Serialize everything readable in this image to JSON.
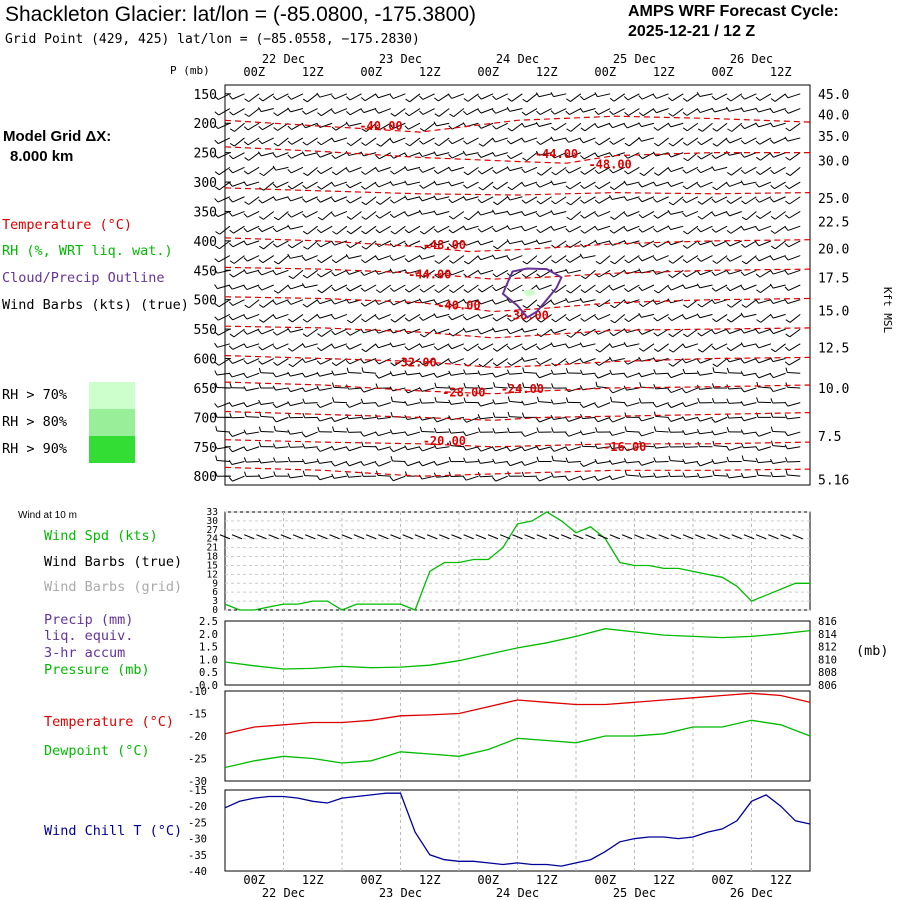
{
  "header": {
    "title": "Shackleton Glacier:  lat/lon = (-85.0800, -175.3800)",
    "grid_point": "Grid Point (429, 425) lat/lon = (−85.0558, −175.2830)",
    "amps_title": "AMPS WRF Forecast Cycle:",
    "cycle": "2025-12-21 / 12  Z"
  },
  "side": {
    "model_grid": "Model Grid ΔX:",
    "model_grid_value": "8.000 km",
    "legend_temperature": "Temperature (°C)",
    "legend_rh": "RH (%, WRT liq. wat.)",
    "legend_cloud": "Cloud/Precip Outline",
    "legend_wind": "Wind Barbs (kts) (true)",
    "rh_levels": [
      "RH > 70%",
      "RH > 80%",
      "RH > 90%"
    ],
    "wind_10m": "Wind at 10 m",
    "wind_spd": "Wind Spd (kts)",
    "wind_barbs_true": "Wind Barbs (true)",
    "wind_barbs_grid": "Wind Barbs (grid)",
    "precip": "Precip (mm)",
    "precip2": "liq. equiv.",
    "precip3": "3-hr accum",
    "pressure": "Pressure (mb)",
    "pressure_unit": "(mb)",
    "temperature": "Temperature (°C)",
    "dewpoint": "Dewpoint (°C)",
    "wind_chill": "Wind Chill T (°C)"
  },
  "colors": {
    "temperature": "#dd0000",
    "rh_green": "#00bb00",
    "cloud": "#663399",
    "wind_chill": "#000099",
    "grid_wind": "#aaaaaa",
    "rh70": "#ccffcc",
    "rh80": "#99ee99",
    "rh90": "#33dd33"
  },
  "chart_data": [
    {
      "type": "line",
      "panel": "cross-section",
      "x_hours": [
        0,
        120
      ],
      "time_ticks": [
        "00Z",
        "12Z",
        "00Z",
        "12Z",
        "00Z",
        "12Z",
        "00Z",
        "12Z",
        "00Z",
        "12Z"
      ],
      "date_ticks": [
        "22 Dec",
        "23 Dec",
        "24 Dec",
        "25 Dec",
        "26 Dec"
      ],
      "ylabel": "P (mb)",
      "y_ticks": [
        150,
        200,
        250,
        300,
        350,
        400,
        450,
        500,
        550,
        600,
        650,
        700,
        750,
        800
      ],
      "right_ylabel": "Kft MSL",
      "right_ticks": [
        "45.0",
        "40.0",
        "35.0",
        "30.0",
        "25.0",
        "22.5",
        "20.0",
        "17.5",
        "15.0",
        "12.5",
        "10.0",
        "7.5",
        "5.16"
      ],
      "right_tick_pressures": [
        150,
        185,
        222,
        263,
        327,
        367,
        413,
        462,
        518,
        581,
        650,
        732,
        806
      ],
      "isotherm_labels": [
        {
          "text": "-40.00",
          "t": 32,
          "p": 205
        },
        {
          "text": "-44.00",
          "t": 68,
          "p": 252
        },
        {
          "text": "-48.00",
          "t": 79,
          "p": 270
        },
        {
          "text": "-48.00",
          "t": 45,
          "p": 407
        },
        {
          "text": "-44.00",
          "t": 42,
          "p": 457
        },
        {
          "text": "-40.00",
          "t": 48,
          "p": 510
        },
        {
          "text": "-36.00",
          "t": 62,
          "p": 527
        },
        {
          "text": "-32.00",
          "t": 39,
          "p": 607
        },
        {
          "text": "-28.00",
          "t": 49,
          "p": 658
        },
        {
          "text": "-24.00",
          "t": 61,
          "p": 652
        },
        {
          "text": "-20.00",
          "t": 45,
          "p": 740
        },
        {
          "text": "-16.00",
          "t": 82,
          "p": 750
        }
      ],
      "isotherms": [
        [
          [
            0,
            195
          ],
          [
            20,
            205
          ],
          [
            40,
            215
          ],
          [
            60,
            195
          ],
          [
            80,
            188
          ],
          [
            100,
            192
          ],
          [
            120,
            198
          ]
        ],
        [
          [
            0,
            240
          ],
          [
            20,
            248
          ],
          [
            40,
            258
          ],
          [
            60,
            265
          ],
          [
            70,
            268
          ],
          [
            80,
            255
          ],
          [
            100,
            250
          ],
          [
            120,
            250
          ]
        ],
        [
          [
            0,
            310
          ],
          [
            20,
            315
          ],
          [
            40,
            320
          ],
          [
            60,
            322
          ],
          [
            80,
            318
          ],
          [
            100,
            320
          ],
          [
            120,
            318
          ]
        ],
        [
          [
            0,
            395
          ],
          [
            20,
            400
          ],
          [
            40,
            410
          ],
          [
            50,
            418
          ],
          [
            60,
            415
          ],
          [
            80,
            405
          ],
          [
            100,
            400
          ],
          [
            120,
            398
          ]
        ],
        [
          [
            0,
            445
          ],
          [
            20,
            448
          ],
          [
            40,
            455
          ],
          [
            55,
            465
          ],
          [
            65,
            462
          ],
          [
            80,
            455
          ],
          [
            100,
            450
          ],
          [
            120,
            448
          ]
        ],
        [
          [
            0,
            495
          ],
          [
            20,
            498
          ],
          [
            40,
            505
          ],
          [
            55,
            520
          ],
          [
            65,
            515
          ],
          [
            80,
            505
          ],
          [
            100,
            500
          ],
          [
            120,
            498
          ]
        ],
        [
          [
            0,
            545
          ],
          [
            20,
            548
          ],
          [
            40,
            555
          ],
          [
            55,
            565
          ],
          [
            65,
            560
          ],
          [
            80,
            552
          ],
          [
            100,
            550
          ],
          [
            120,
            548
          ]
        ],
        [
          [
            0,
            595
          ],
          [
            20,
            600
          ],
          [
            40,
            605
          ],
          [
            55,
            615
          ],
          [
            65,
            612
          ],
          [
            80,
            605
          ],
          [
            100,
            600
          ],
          [
            120,
            598
          ]
        ],
        [
          [
            0,
            640
          ],
          [
            20,
            645
          ],
          [
            40,
            655
          ],
          [
            55,
            660
          ],
          [
            65,
            655
          ],
          [
            80,
            650
          ],
          [
            100,
            648
          ],
          [
            120,
            645
          ]
        ],
        [
          [
            0,
            690
          ],
          [
            20,
            695
          ],
          [
            40,
            700
          ],
          [
            55,
            705
          ],
          [
            65,
            700
          ],
          [
            80,
            698
          ],
          [
            100,
            695
          ],
          [
            120,
            692
          ]
        ],
        [
          [
            0,
            738
          ],
          [
            20,
            742
          ],
          [
            40,
            745
          ],
          [
            55,
            750
          ],
          [
            65,
            748
          ],
          [
            80,
            745
          ],
          [
            100,
            745
          ],
          [
            120,
            742
          ]
        ],
        [
          [
            0,
            785
          ],
          [
            20,
            790
          ],
          [
            40,
            800
          ],
          [
            60,
            795
          ],
          [
            80,
            790
          ],
          [
            100,
            790
          ],
          [
            120,
            788
          ]
        ]
      ],
      "cloud_outline": [
        [
          59,
          452
        ],
        [
          58,
          470
        ],
        [
          57,
          490
        ],
        [
          60,
          510
        ],
        [
          62,
          530
        ],
        [
          64,
          520
        ],
        [
          66,
          500
        ],
        [
          68,
          480
        ],
        [
          69,
          462
        ],
        [
          66,
          448
        ],
        [
          62,
          447
        ]
      ],
      "rh_patch": [
        [
          61,
          485
        ],
        [
          63,
          482
        ],
        [
          64,
          490
        ],
        [
          62,
          495
        ]
      ]
    },
    {
      "type": "line",
      "panel": "wind-10m",
      "y_ticks": [
        0,
        3,
        6,
        9,
        12,
        15,
        18,
        21,
        24,
        27,
        30,
        33
      ],
      "series": [
        {
          "name": "Wind Spd (kts)",
          "color": "#00bb00",
          "t": [
            0,
            3,
            6,
            9,
            12,
            15,
            18,
            21,
            24,
            27,
            30,
            33,
            36,
            39,
            42,
            45,
            48,
            51,
            54,
            57,
            60,
            63,
            66,
            69,
            72,
            75,
            78,
            81,
            84,
            87,
            90,
            93,
            96,
            99,
            102,
            105,
            108,
            111,
            114,
            117,
            120
          ],
          "values": [
            2,
            0,
            0,
            1,
            2,
            2,
            3,
            3,
            0,
            2,
            2,
            2,
            2,
            0,
            13,
            16,
            16,
            17,
            17,
            21,
            29,
            30,
            33,
            30,
            26,
            28,
            24,
            16,
            15,
            15,
            14,
            14,
            13,
            12,
            11,
            8,
            3,
            5,
            7,
            9,
            9
          ]
        }
      ]
    },
    {
      "type": "line",
      "panel": "precip-pressure",
      "left_ticks": [
        0,
        0.5,
        1.0,
        1.5,
        2.0,
        2.5
      ],
      "right_ticks": [
        806,
        808,
        810,
        812,
        814,
        816
      ],
      "series": [
        {
          "name": "Pressure (mb)",
          "color": "#00bb00",
          "t": [
            0,
            6,
            12,
            18,
            24,
            30,
            36,
            42,
            48,
            54,
            60,
            66,
            72,
            78,
            84,
            90,
            96,
            102,
            108,
            114,
            120
          ],
          "values": [
            809.6,
            809.0,
            808.5,
            808.6,
            808.9,
            808.7,
            808.8,
            809.1,
            809.8,
            810.8,
            811.8,
            812.6,
            813.6,
            814.8,
            814.3,
            813.8,
            813.6,
            813.4,
            813.6,
            814.0,
            814.5
          ]
        }
      ]
    },
    {
      "type": "line",
      "panel": "temperature",
      "y_ticks": [
        -10,
        -15,
        -20,
        -25,
        -30
      ],
      "series": [
        {
          "name": "Temperature (°C)",
          "color": "#dd0000",
          "t": [
            0,
            6,
            12,
            18,
            24,
            30,
            36,
            42,
            48,
            54,
            60,
            66,
            72,
            78,
            84,
            90,
            96,
            102,
            108,
            114,
            120
          ],
          "values": [
            -19.5,
            -18.0,
            -17.5,
            -17.0,
            -17.0,
            -16.5,
            -15.5,
            -15.3,
            -15.0,
            -13.5,
            -12.0,
            -12.5,
            -13.0,
            -13.0,
            -12.5,
            -12.0,
            -11.5,
            -11.0,
            -10.5,
            -11.0,
            -12.5
          ]
        },
        {
          "name": "Dewpoint (°C)",
          "color": "#00bb00",
          "t": [
            0,
            6,
            12,
            18,
            24,
            30,
            36,
            42,
            48,
            54,
            60,
            66,
            72,
            78,
            84,
            90,
            96,
            102,
            108,
            114,
            120
          ],
          "values": [
            -27.0,
            -25.5,
            -24.5,
            -25.0,
            -26.0,
            -25.5,
            -23.5,
            -24.0,
            -24.5,
            -23.0,
            -20.5,
            -21.0,
            -21.5,
            -20.0,
            -20.0,
            -19.5,
            -18.0,
            -18.0,
            -16.5,
            -17.5,
            -20.0
          ]
        }
      ]
    },
    {
      "type": "line",
      "panel": "wind-chill",
      "y_ticks": [
        -15,
        -20,
        -25,
        -30,
        -35,
        -40
      ],
      "series": [
        {
          "name": "Wind Chill T (°C)",
          "color": "#000099",
          "t": [
            0,
            3,
            6,
            9,
            12,
            15,
            18,
            21,
            24,
            27,
            30,
            33,
            36,
            39,
            42,
            45,
            48,
            51,
            54,
            57,
            60,
            63,
            66,
            69,
            72,
            75,
            78,
            81,
            84,
            87,
            90,
            93,
            96,
            99,
            102,
            105,
            108,
            111,
            114,
            117,
            120
          ],
          "values": [
            -20.5,
            -18.5,
            -17.5,
            -17.0,
            -17.0,
            -17.5,
            -18.5,
            -19.0,
            -17.5,
            -17.0,
            -16.5,
            -16.0,
            -16.0,
            -28.0,
            -35.0,
            -36.5,
            -37.0,
            -37.0,
            -37.5,
            -38.0,
            -37.5,
            -38.0,
            -38.0,
            -38.5,
            -37.5,
            -36.5,
            -34.0,
            -31.0,
            -30.0,
            -29.5,
            -29.5,
            -30.0,
            -29.5,
            -28.0,
            -27.0,
            -24.5,
            -18.5,
            -16.5,
            -20.0,
            -24.5,
            -25.5
          ]
        }
      ]
    }
  ]
}
